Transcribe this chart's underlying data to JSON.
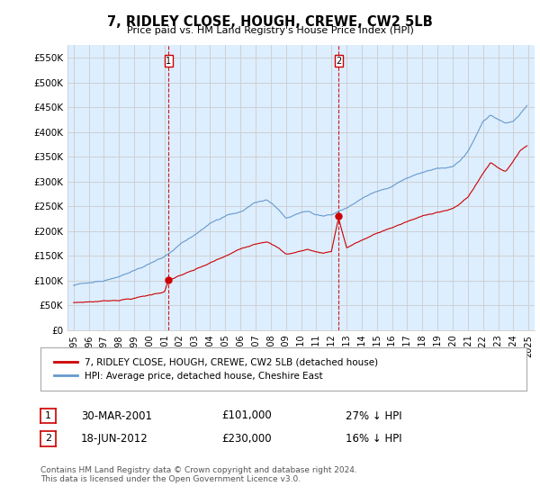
{
  "title": "7, RIDLEY CLOSE, HOUGH, CREWE, CW2 5LB",
  "subtitle": "Price paid vs. HM Land Registry's House Price Index (HPI)",
  "ylabel_ticks": [
    "£0",
    "£50K",
    "£100K",
    "£150K",
    "£200K",
    "£250K",
    "£300K",
    "£350K",
    "£400K",
    "£450K",
    "£500K",
    "£550K"
  ],
  "ytick_values": [
    0,
    50000,
    100000,
    150000,
    200000,
    250000,
    300000,
    350000,
    400000,
    450000,
    500000,
    550000
  ],
  "ylim": [
    0,
    575000
  ],
  "legend_entry1": "7, RIDLEY CLOSE, HOUGH, CREWE, CW2 5LB (detached house)",
  "legend_entry2": "HPI: Average price, detached house, Cheshire East",
  "label1_date": "30-MAR-2001",
  "label1_price": "£101,000",
  "label1_hpi": "27% ↓ HPI",
  "label2_date": "18-JUN-2012",
  "label2_price": "£230,000",
  "label2_hpi": "16% ↓ HPI",
  "footnote": "Contains HM Land Registry data © Crown copyright and database right 2024.\nThis data is licensed under the Open Government Licence v3.0.",
  "red_color": "#cc0000",
  "blue_color": "#6699cc",
  "grid_color": "#cccccc",
  "background_color": "#ffffff",
  "plot_bg_color": "#ddeeff",
  "marker1_x": 2001.25,
  "marker1_y": 101000,
  "marker2_x": 2012.47,
  "marker2_y": 230000,
  "xtick_years": [
    "1995",
    "1996",
    "1997",
    "1998",
    "1999",
    "2000",
    "2001",
    "2002",
    "2003",
    "2004",
    "2005",
    "2006",
    "2007",
    "2008",
    "2009",
    "2010",
    "2011",
    "2012",
    "2013",
    "2014",
    "2015",
    "2016",
    "2017",
    "2018",
    "2019",
    "2020",
    "2021",
    "2022",
    "2023",
    "2024",
    "2025"
  ],
  "xlim": [
    1994.6,
    2025.4
  ]
}
